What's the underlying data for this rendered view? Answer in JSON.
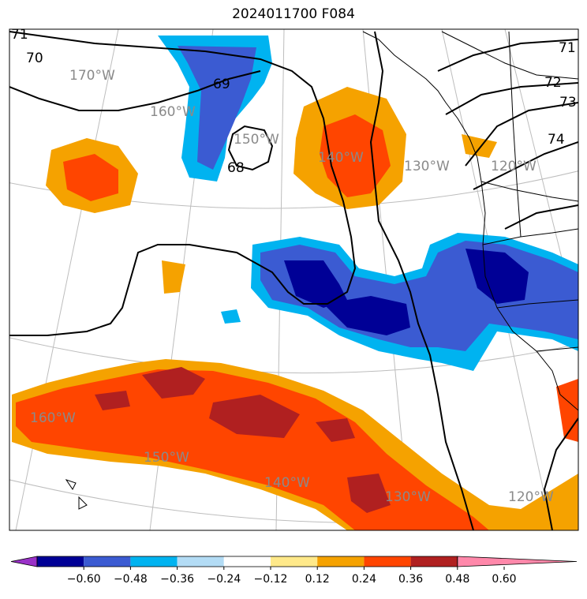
{
  "title": "2024011700 F084",
  "lon_labels": [
    "170°W",
    "160°W",
    "150°W",
    "140°W",
    "130°W",
    "120°W",
    "160°W",
    "150°W",
    "140°W",
    "130°W",
    "120°W"
  ],
  "contour_labels": [
    "71",
    "70",
    "69",
    "68",
    "71",
    "72",
    "73",
    "74"
  ],
  "colorbar": {
    "colors": [
      "#9a31c8",
      "#000096",
      "#3b5bd2",
      "#00b3f0",
      "#b3dcf5",
      "#ffffff",
      "#ffe98a",
      "#f5a200",
      "#ff4500",
      "#b02020",
      "#ff88aa"
    ],
    "ticks": [
      "−0.60",
      "−0.48",
      "−0.36",
      "−0.24",
      "−0.12",
      "0.12",
      "0.24",
      "0.36",
      "0.48",
      "0.60"
    ]
  }
}
